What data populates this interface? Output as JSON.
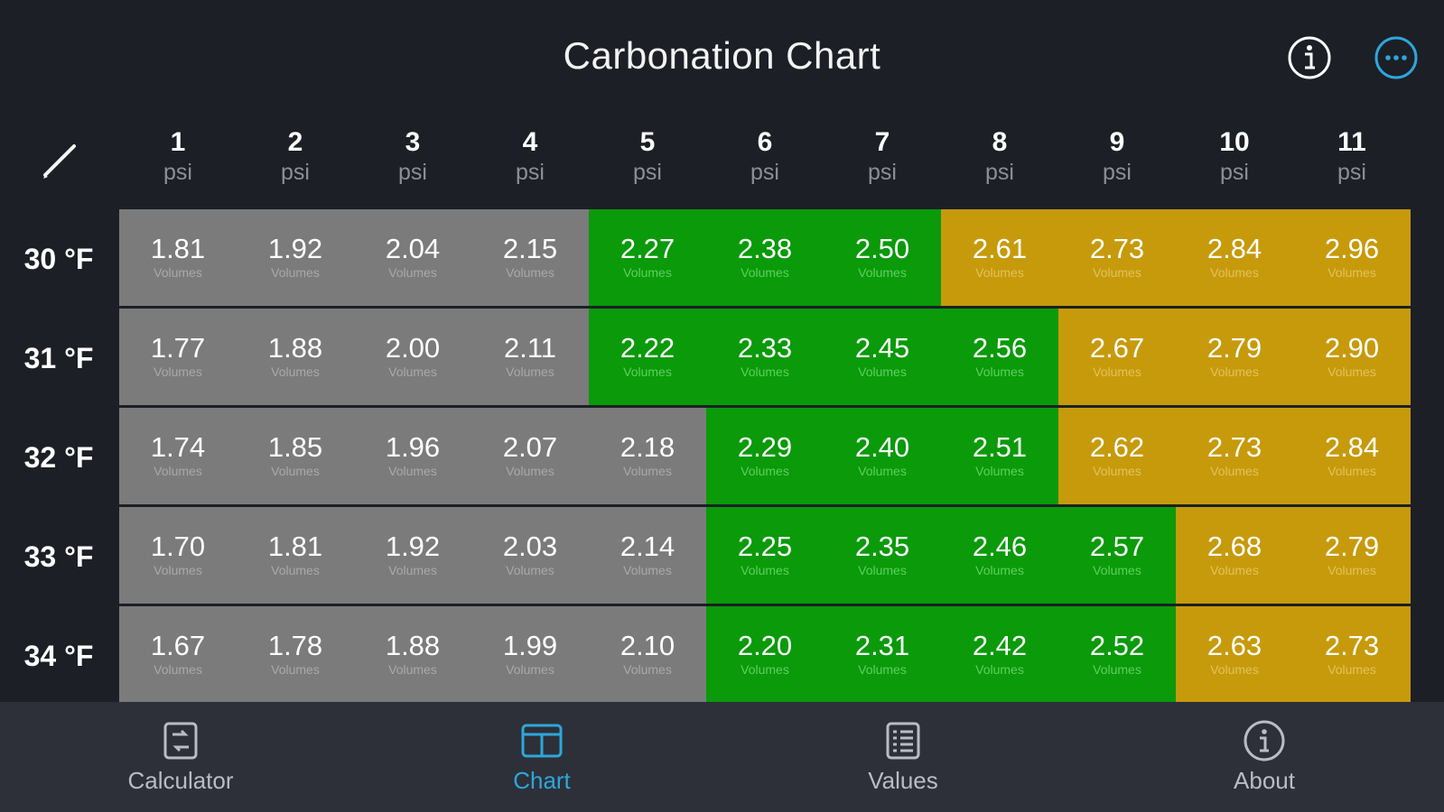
{
  "header": {
    "title": "Carbonation Chart"
  },
  "columns": [
    "1",
    "2",
    "3",
    "4",
    "5",
    "6",
    "7",
    "8",
    "9",
    "10",
    "11"
  ],
  "unit_label": "psi",
  "cell_unit": "Volumes",
  "rows": [
    {
      "label": "30 °F",
      "values": [
        "1.81",
        "1.92",
        "2.04",
        "2.15",
        "2.27",
        "2.38",
        "2.50",
        "2.61",
        "2.73",
        "2.84",
        "2.96"
      ],
      "zones": [
        "gray",
        "gray",
        "gray",
        "gray",
        "green",
        "green",
        "green",
        "gold",
        "gold",
        "gold",
        "gold"
      ]
    },
    {
      "label": "31 °F",
      "values": [
        "1.77",
        "1.88",
        "2.00",
        "2.11",
        "2.22",
        "2.33",
        "2.45",
        "2.56",
        "2.67",
        "2.79",
        "2.90"
      ],
      "zones": [
        "gray",
        "gray",
        "gray",
        "gray",
        "green",
        "green",
        "green",
        "green",
        "gold",
        "gold",
        "gold"
      ]
    },
    {
      "label": "32 °F",
      "values": [
        "1.74",
        "1.85",
        "1.96",
        "2.07",
        "2.18",
        "2.29",
        "2.40",
        "2.51",
        "2.62",
        "2.73",
        "2.84"
      ],
      "zones": [
        "gray",
        "gray",
        "gray",
        "gray",
        "gray",
        "green",
        "green",
        "green",
        "gold",
        "gold",
        "gold"
      ]
    },
    {
      "label": "33 °F",
      "values": [
        "1.70",
        "1.81",
        "1.92",
        "2.03",
        "2.14",
        "2.25",
        "2.35",
        "2.46",
        "2.57",
        "2.68",
        "2.79"
      ],
      "zones": [
        "gray",
        "gray",
        "gray",
        "gray",
        "gray",
        "green",
        "green",
        "green",
        "green",
        "gold",
        "gold"
      ]
    },
    {
      "label": "34 °F",
      "values": [
        "1.67",
        "1.78",
        "1.88",
        "1.99",
        "2.10",
        "2.20",
        "2.31",
        "2.42",
        "2.52",
        "2.63",
        "2.73"
      ],
      "zones": [
        "gray",
        "gray",
        "gray",
        "gray",
        "gray",
        "green",
        "green",
        "green",
        "green",
        "gold",
        "gold"
      ]
    }
  ],
  "colors": {
    "gray": "#7b7b7b",
    "green": "#0a9a0a",
    "gold": "#c69a0b",
    "accent": "#2ea6dc",
    "background": "#1c1f26",
    "tabbar": "#2d3038"
  },
  "tabs": [
    {
      "label": "Calculator",
      "icon": "calculator-icon",
      "active": false
    },
    {
      "label": "Chart",
      "icon": "chart-icon",
      "active": true
    },
    {
      "label": "Values",
      "icon": "list-icon",
      "active": false
    },
    {
      "label": "About",
      "icon": "about-icon",
      "active": false
    }
  ]
}
